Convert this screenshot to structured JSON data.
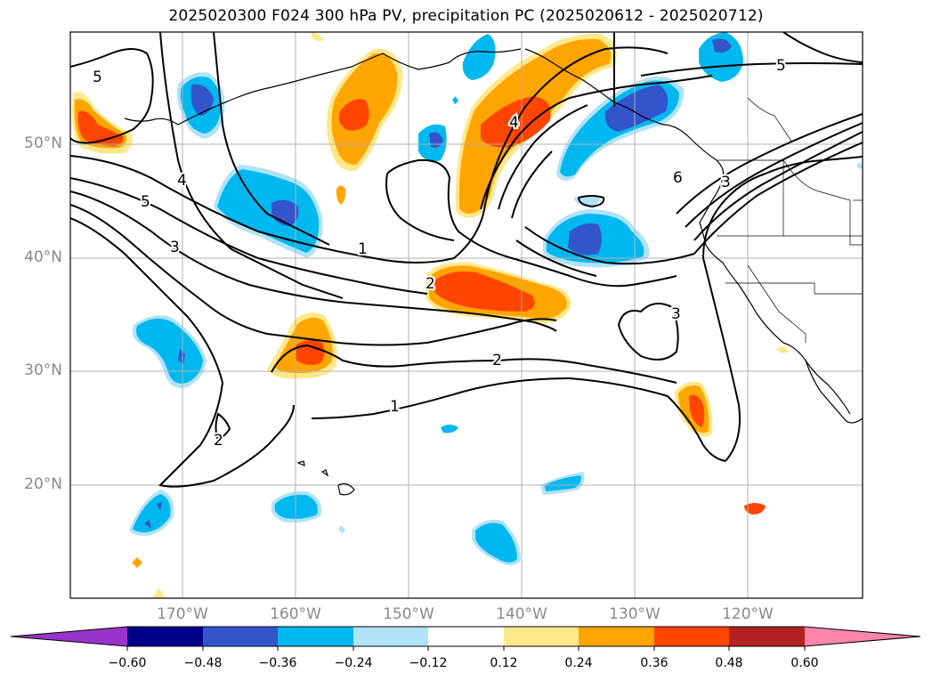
{
  "title": "2025020300 F024 300 hPa PV, precipitation PC (2025020612 - 2025020712)",
  "lat_labels": [
    "50°N",
    "40°N",
    "30°N",
    "20°N"
  ],
  "lon_labels": [
    "170°W",
    "160°W",
    "150°W",
    "140°W",
    "130°W",
    "120°W"
  ],
  "contour_labels": [
    "5",
    "4",
    "5",
    "3",
    "1",
    "2",
    "2",
    "1",
    "2",
    "4",
    "6",
    "3",
    "3",
    "5"
  ],
  "colorbar": {
    "ticks": [
      "−0.60",
      "−0.48",
      "−0.36",
      "−0.24",
      "−0.12",
      "0.12",
      "0.24",
      "0.36",
      "0.48",
      "0.60"
    ],
    "colors": [
      "#9933cc",
      "#00008b",
      "#3355cc",
      "#00b8f0",
      "#b0e2f8",
      "#ffffff",
      "#ffe88a",
      "#ffa500",
      "#ff4500",
      "#b22222",
      "#ff85aa"
    ]
  },
  "palette": {
    "neg_strong": "#3355cc",
    "neg_mid": "#00b8f0",
    "neg_weak": "#b0e2f8",
    "pos_weak": "#ffe88a",
    "pos_mid": "#ffa500",
    "pos_strong": "#ff4500",
    "grid": "#b0b0b0"
  }
}
